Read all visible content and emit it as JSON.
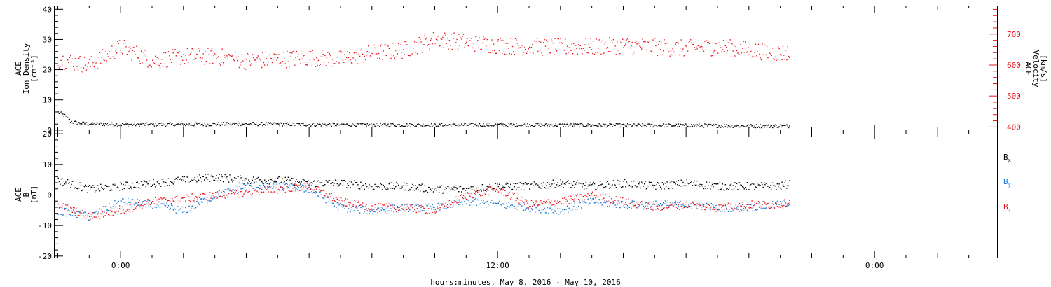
{
  "colors": {
    "black": "#000000",
    "red": "#e8141b",
    "blue": "#1c78d4"
  },
  "footer": {
    "xlabel": "hours:minutes, May  8, 2016 - May 10, 2016"
  },
  "chart_data": [
    {
      "type": "scatter",
      "panel": "top",
      "ylabel_left": [
        "ACE",
        "Ion Density",
        "[cm⁻³]"
      ],
      "ylabel_right": [
        "ACE",
        "Velocity",
        "[km/s]"
      ],
      "x_ticks": [
        "0:00",
        "12:00",
        "0:00"
      ],
      "x_tick_hours": [
        0,
        12,
        24
      ],
      "xlim_hours": [
        -2.1,
        27.9
      ],
      "ylim_left": [
        -0.5,
        41
      ],
      "left_ticks": [
        "0",
        "10",
        "20",
        "30",
        "40"
      ],
      "ylim_right": [
        385,
        790
      ],
      "right_ticks": [
        "400",
        "500",
        "600",
        "700"
      ],
      "data_end_hours": 21.3,
      "series": [
        {
          "axis": "left",
          "color": "black",
          "x": [
            -2.0,
            -1.8,
            -1.6,
            -1.4,
            -1.0,
            0,
            2,
            4,
            6,
            8,
            10,
            12,
            14,
            16,
            18,
            20,
            21.3
          ],
          "y": [
            6,
            5,
            3,
            2.5,
            2.2,
            2.0,
            2.0,
            2.2,
            2.0,
            1.9,
            1.8,
            1.9,
            1.8,
            1.7,
            1.7,
            1.5,
            1.5
          ]
        },
        {
          "axis": "right",
          "color": "red",
          "x": [
            -2.0,
            -1.0,
            0,
            1,
            2,
            3,
            4,
            5,
            6,
            7,
            8,
            9,
            10,
            11,
            12,
            13,
            14,
            15,
            16,
            17,
            18,
            19,
            20,
            21,
            21.3
          ],
          "y": [
            620,
            600,
            660,
            615,
            630,
            630,
            615,
            620,
            625,
            620,
            640,
            650,
            685,
            675,
            665,
            660,
            660,
            660,
            665,
            660,
            655,
            660,
            650,
            640,
            640
          ]
        }
      ]
    },
    {
      "type": "scatter",
      "panel": "bottom",
      "ylabel_left": [
        "ACE",
        "B",
        "[nT]"
      ],
      "x_ticks": [
        "0:00",
        "12:00",
        "0:00"
      ],
      "x_tick_hours": [
        0,
        12,
        24
      ],
      "xlim_hours": [
        -2.1,
        27.9
      ],
      "ylim": [
        -20.5,
        20.5
      ],
      "left_ticks": [
        "20",
        "10",
        "0",
        "-10",
        "-20"
      ],
      "zero_line": true,
      "data_end_hours": 21.3,
      "series": [
        {
          "name": "Bx",
          "label_main": "B",
          "label_sub": "x",
          "color": "black",
          "x": [
            -2.0,
            -1.0,
            0,
            1,
            2,
            3,
            4,
            5,
            6,
            7,
            8,
            9,
            10,
            11,
            12,
            13,
            14,
            15,
            16,
            17,
            18,
            19,
            20,
            21,
            21.3
          ],
          "y": [
            5,
            2,
            3,
            4,
            5,
            6,
            5,
            5,
            4,
            4,
            3,
            3,
            2,
            2,
            3,
            3,
            4,
            3,
            4,
            3,
            4,
            3,
            3,
            3,
            4
          ]
        },
        {
          "name": "By",
          "label_main": "B",
          "label_sub": "y",
          "color": "blue",
          "x": [
            -2.0,
            -1.0,
            0,
            1,
            2,
            3,
            4,
            5,
            6,
            7,
            8,
            9,
            10,
            11,
            12,
            13,
            14,
            15,
            16,
            17,
            18,
            19,
            20,
            21,
            21.3
          ],
          "y": [
            -5,
            -7,
            -2,
            -3,
            -5,
            0,
            3,
            3,
            2,
            -4,
            -5,
            -4,
            -4,
            -2,
            -3,
            -4,
            -5,
            -2,
            -3,
            -3,
            -3,
            -4,
            -4,
            -3,
            -2
          ]
        },
        {
          "name": "Bz",
          "label_main": "B",
          "label_sub": "z",
          "color": "red",
          "x": [
            -2.0,
            -1.0,
            0,
            1,
            2,
            3,
            4,
            5,
            6,
            7,
            8,
            9,
            10,
            11,
            12,
            13,
            14,
            15,
            16,
            17,
            18,
            19,
            20,
            21,
            21.3
          ],
          "y": [
            -3,
            -7,
            -5,
            -2,
            -1,
            0,
            1,
            2,
            3,
            -2,
            -4,
            -4,
            -5,
            0,
            2,
            -3,
            -2,
            0,
            -2,
            -4,
            -3,
            -4,
            -3,
            -3,
            -2
          ]
        }
      ]
    }
  ]
}
